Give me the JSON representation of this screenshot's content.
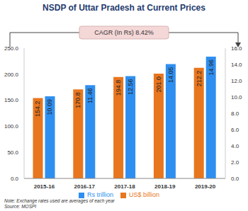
{
  "chart_data": {
    "type": "bar",
    "title": "NSDP of Uttar Pradesh at Current Prices",
    "annotation": "CAGR (In Rs) 8.42%",
    "notes": [
      "Note: Exchange rates used are averages of each year",
      "Source: MOSPI"
    ],
    "categories": [
      "2015-16",
      "2016-17",
      "2017-18",
      "2018-19",
      "2019-20"
    ],
    "series": [
      {
        "name": "US$ billion",
        "color": "#e8761e",
        "values": [
          154.2,
          170.8,
          194.8,
          201.0,
          212.2
        ],
        "value_labels": [
          "154.2",
          "170.8",
          "194.8",
          "201.0",
          "212.2"
        ]
      },
      {
        "name": "Rs trillion",
        "color": "#2f8ff0",
        "axis": "y2",
        "values": [
          10.09,
          11.46,
          12.56,
          14.05,
          14.96
        ],
        "value_labels": [
          "10.09",
          "11.46",
          "12.56",
          "14.05",
          "14.96"
        ]
      }
    ],
    "ylim": [
      0,
      250
    ],
    "yticks": [
      {
        "value": 0,
        "label": "0.0"
      },
      {
        "value": 50,
        "label": "50.0"
      },
      {
        "value": 100,
        "label": "100.0"
      },
      {
        "value": 150,
        "label": "150.0"
      },
      {
        "value": 200,
        "label": "200.0"
      },
      {
        "value": 250,
        "label": "250.0"
      }
    ],
    "y2lim": [
      0,
      16
    ],
    "y2ticks": [
      {
        "value": 0,
        "label": "0.0"
      },
      {
        "value": 2,
        "label": "2.0"
      },
      {
        "value": 4,
        "label": "4.0"
      },
      {
        "value": 6,
        "label": "6.0"
      },
      {
        "value": 8,
        "label": "8.0"
      },
      {
        "value": 10,
        "label": "10.0"
      },
      {
        "value": 12,
        "label": "12.0"
      },
      {
        "value": 14,
        "label": "14.0"
      },
      {
        "value": 16,
        "label": "16.0"
      }
    ],
    "grid": false,
    "legend": "bottom",
    "data_labels": true
  }
}
